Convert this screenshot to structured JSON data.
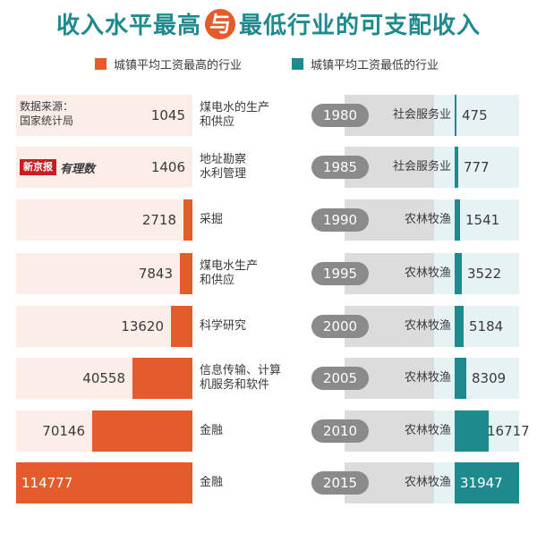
{
  "title": {
    "left": "收入水平最高",
    "amp": "与",
    "right": "最低行业的可支配收入"
  },
  "legend": {
    "high": {
      "label": "城镇平均工资最高的行业",
      "color": "#e45c2b"
    },
    "low": {
      "label": "城镇平均工资最低的行业",
      "color": "#1f8a8d"
    }
  },
  "source": {
    "line1": "数据来源：",
    "line2": "国家统计局"
  },
  "logo": {
    "brand": "新京报",
    "sub": "有理数"
  },
  "chart_data": {
    "type": "bar",
    "categories": [
      "1980",
      "1985",
      "1990",
      "1995",
      "2000",
      "2005",
      "2010",
      "2015"
    ],
    "series": [
      {
        "name": "城镇平均工资最高的行业",
        "values": [
          1045,
          1406,
          2718,
          7843,
          13620,
          40558,
          70146,
          114777
        ]
      },
      {
        "name": "城镇平均工资最低的行业",
        "values": [
          475,
          777,
          1541,
          3522,
          5184,
          8309,
          16717,
          31947
        ]
      }
    ],
    "high_industries": [
      [
        "煤电水的生产",
        "和供应"
      ],
      [
        "地址勘察",
        "水利管理"
      ],
      [
        "采掘"
      ],
      [
        "煤电水生产",
        "和供应"
      ],
      [
        "科学研究"
      ],
      [
        "信息传输、计算",
        "机服务和软件"
      ],
      [
        "金融"
      ],
      [
        "金融"
      ]
    ],
    "low_industries": [
      "社会服务业",
      "社会服务业",
      "农林牧渔",
      "农林牧渔",
      "农林牧渔",
      "农林牧渔",
      "农林牧渔",
      "农林牧渔"
    ],
    "high_max": 114777,
    "low_max": 31947
  }
}
